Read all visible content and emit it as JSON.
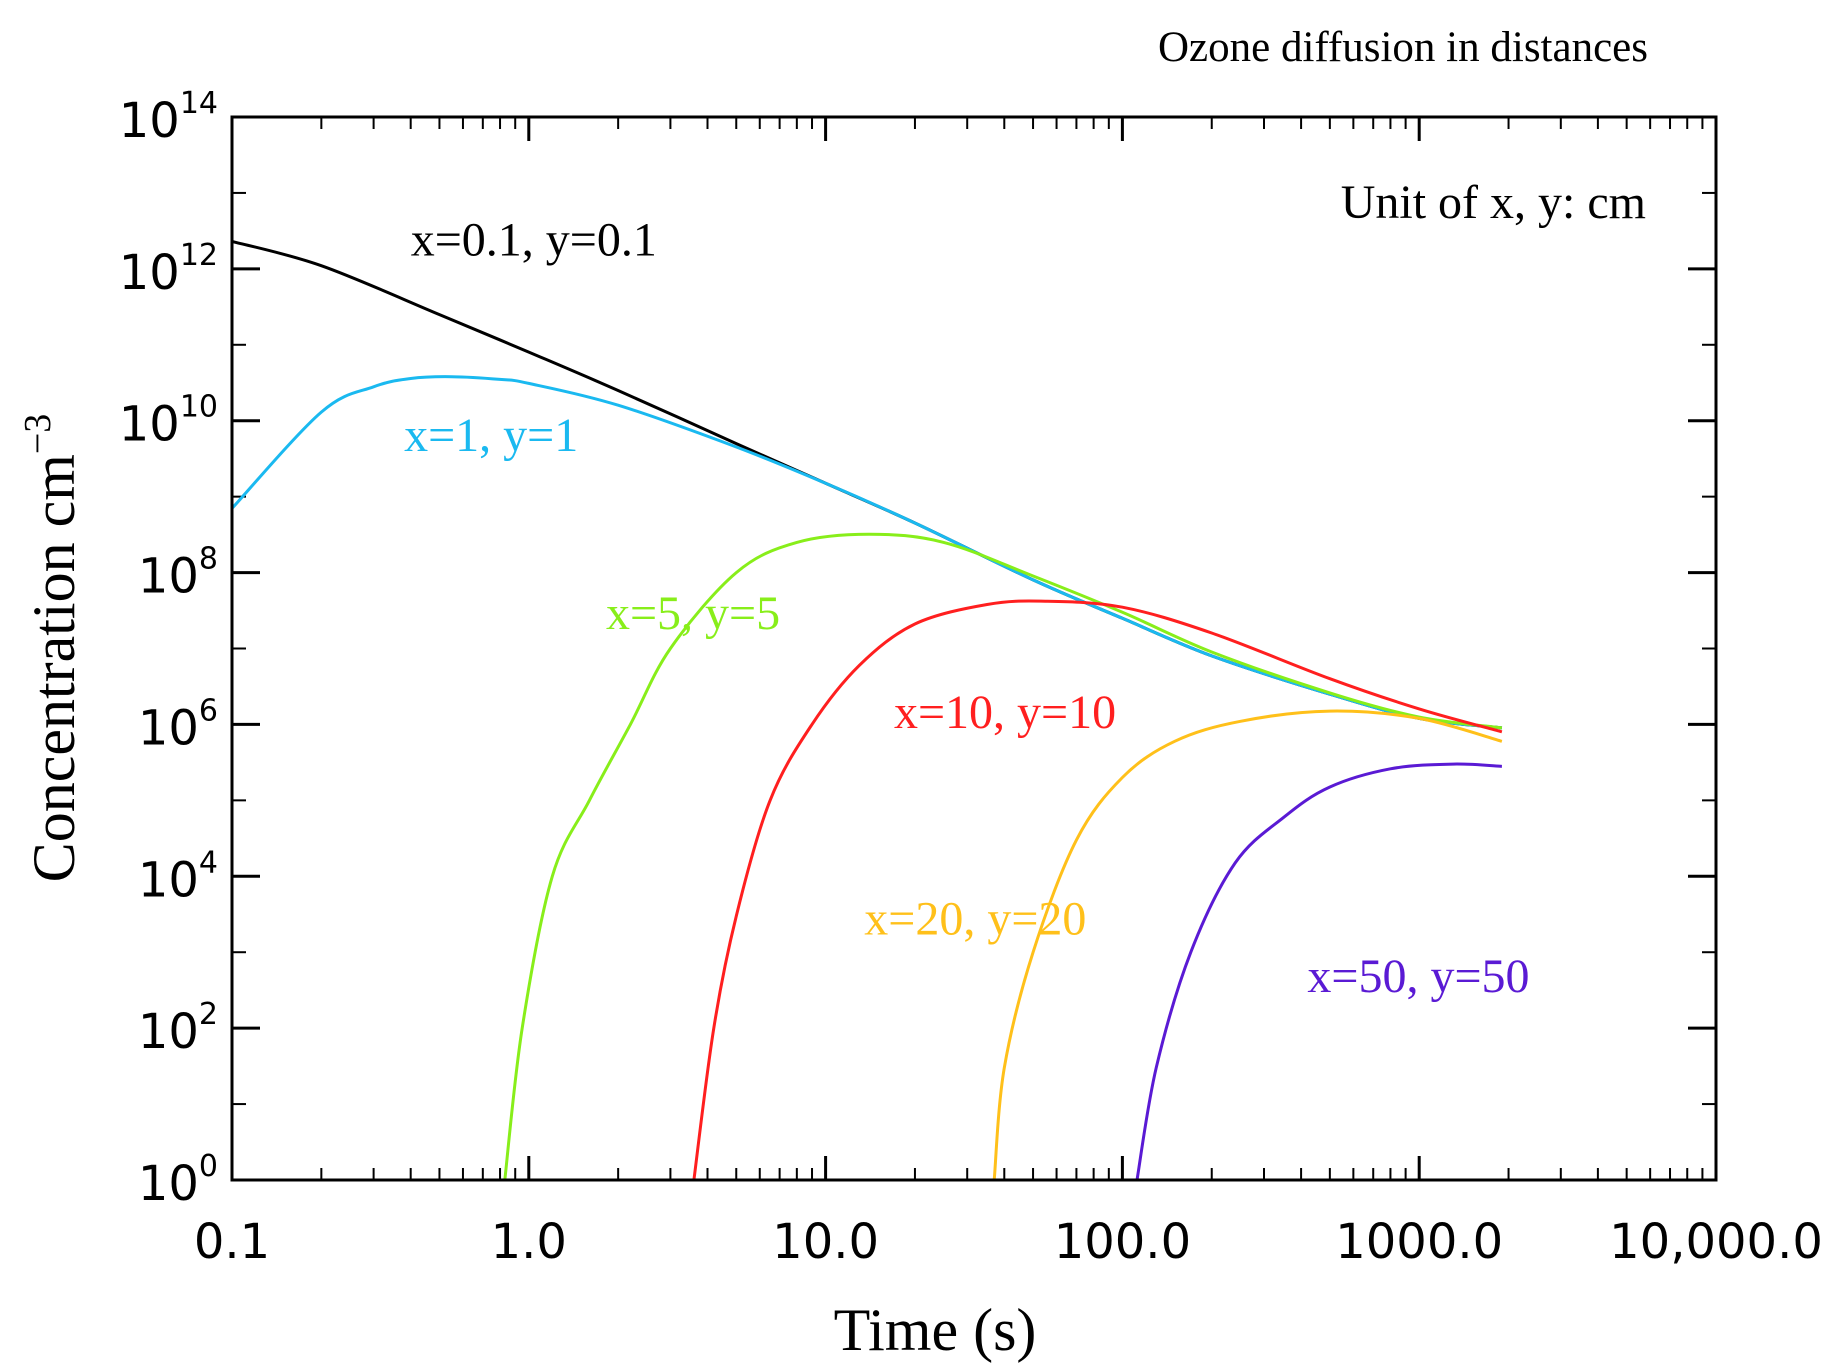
{
  "chart_data": {
    "type": "line",
    "title": "Ozone diffusion in distances",
    "annotation": "Unit of x, y: cm",
    "xlabel": "Time (s)",
    "ylabel": "Concentration cm",
    "ylabel_superscript": "−3",
    "x_scale": "log",
    "y_scale": "log",
    "xlim": [
      0.1,
      10000
    ],
    "ylim": [
      1,
      100000000000000.0
    ],
    "x_ticks": [
      {
        "value": 0.1,
        "label": "0.1"
      },
      {
        "value": 1,
        "label": "1.0"
      },
      {
        "value": 10,
        "label": "10.0"
      },
      {
        "value": 100,
        "label": "100.0"
      },
      {
        "value": 1000,
        "label": "1000.0"
      },
      {
        "value": 10000,
        "label": "10,000.0"
      }
    ],
    "y_ticks": [
      {
        "value": 1,
        "base": "10",
        "exp": "0"
      },
      {
        "value": 100,
        "base": "10",
        "exp": "2"
      },
      {
        "value": 10000,
        "base": "10",
        "exp": "4"
      },
      {
        "value": 1000000,
        "base": "10",
        "exp": "6"
      },
      {
        "value": 100000000,
        "base": "10",
        "exp": "8"
      },
      {
        "value": 10000000000,
        "base": "10",
        "exp": "10"
      },
      {
        "value": 1000000000000,
        "base": "10",
        "exp": "12"
      },
      {
        "value": 100000000000000,
        "base": "10",
        "exp": "14"
      }
    ],
    "series": [
      {
        "name": "x=0.1, y=0.1",
        "color": "#000000",
        "label_pos": [
          0.4,
          1500000000000.0
        ],
        "points": [
          [
            0.1,
            2300000000000.0
          ],
          [
            0.2,
            1100000000000.0
          ],
          [
            0.5,
            250000000000.0
          ],
          [
            1,
            80000000000.0
          ],
          [
            2,
            25000000000.0
          ],
          [
            5,
            5000000000.0
          ],
          [
            10,
            1500000000.0
          ],
          [
            20,
            450000000.0
          ],
          [
            50,
            80000000.0
          ],
          [
            100,
            25000000.0
          ],
          [
            200,
            8000000.0
          ],
          [
            500,
            2500000.0
          ],
          [
            1000,
            1200000.0
          ],
          [
            1900,
            900000.0
          ]
        ]
      },
      {
        "name": "x=1, y=1",
        "color": "#1ab9f0",
        "label_pos": [
          0.38,
          4000000000.0
        ],
        "points": [
          [
            0.1,
            700000000.0
          ],
          [
            0.2,
            13000000000.0
          ],
          [
            0.3,
            28000000000.0
          ],
          [
            0.4,
            36000000000.0
          ],
          [
            0.55,
            38000000000.0
          ],
          [
            0.8,
            35000000000.0
          ],
          [
            1,
            31000000000.0
          ],
          [
            2,
            16000000000.0
          ],
          [
            5,
            4500000000.0
          ],
          [
            10,
            1500000000.0
          ],
          [
            20,
            450000000.0
          ],
          [
            50,
            80000000.0
          ],
          [
            100,
            25000000.0
          ],
          [
            200,
            8000000.0
          ],
          [
            500,
            2500000.0
          ],
          [
            1000,
            1200000.0
          ],
          [
            1900,
            900000.0
          ]
        ]
      },
      {
        "name": "x=5, y=5",
        "color": "#88ee1a",
        "label_pos": [
          1.82,
          18000000.0
        ],
        "points": [
          [
            0.83,
            1
          ],
          [
            0.95,
            100.0
          ],
          [
            1.2,
            10000.0
          ],
          [
            1.6,
            100000.0
          ],
          [
            2.2,
            1000000.0
          ],
          [
            3,
            10000000.0
          ],
          [
            5,
            100000000.0
          ],
          [
            8,
            250000000.0
          ],
          [
            14,
            320000000.0
          ],
          [
            25,
            250000000.0
          ],
          [
            50,
            90000000.0
          ],
          [
            100,
            30000000.0
          ],
          [
            200,
            9000000.0
          ],
          [
            500,
            2600000.0
          ],
          [
            1000,
            1250000.0
          ],
          [
            1900,
            900000.0
          ]
        ]
      },
      {
        "name": "x=10, y=10",
        "color": "#ff1f1f",
        "label_pos": [
          17,
          900000.0
        ],
        "points": [
          [
            3.6,
            1
          ],
          [
            4.2,
            100.0
          ],
          [
            5,
            3000.0
          ],
          [
            6.5,
            100000.0
          ],
          [
            9,
            1000000.0
          ],
          [
            13,
            6000000.0
          ],
          [
            20,
            21000000.0
          ],
          [
            35,
            38000000.0
          ],
          [
            55,
            42000000.0
          ],
          [
            100,
            35000000.0
          ],
          [
            200,
            16000000.0
          ],
          [
            500,
            4000000.0
          ],
          [
            1000,
            1600000.0
          ],
          [
            1900,
            800000.0
          ]
        ]
      },
      {
        "name": "x=20, y=20",
        "color": "#ffc01a",
        "label_pos": [
          13.5,
          1700.0
        ],
        "points": [
          [
            37,
            1
          ],
          [
            40,
            30
          ],
          [
            50,
            1000.0
          ],
          [
            70,
            30000.0
          ],
          [
            100,
            200000.0
          ],
          [
            150,
            600000.0
          ],
          [
            250,
            1100000.0
          ],
          [
            500,
            1500000.0
          ],
          [
            1000,
            1200000.0
          ],
          [
            1900,
            600000.0
          ]
        ]
      },
      {
        "name": "x=50, y=50",
        "color": "#5a1ad4",
        "label_pos": [
          420,
          300
        ],
        "points": [
          [
            112,
            1
          ],
          [
            130,
            30
          ],
          [
            170,
            1000.0
          ],
          [
            240,
            15000.0
          ],
          [
            350,
            60000.0
          ],
          [
            500,
            150000.0
          ],
          [
            800,
            260000.0
          ],
          [
            1300,
            300000.0
          ],
          [
            1900,
            280000.0
          ]
        ]
      }
    ]
  }
}
